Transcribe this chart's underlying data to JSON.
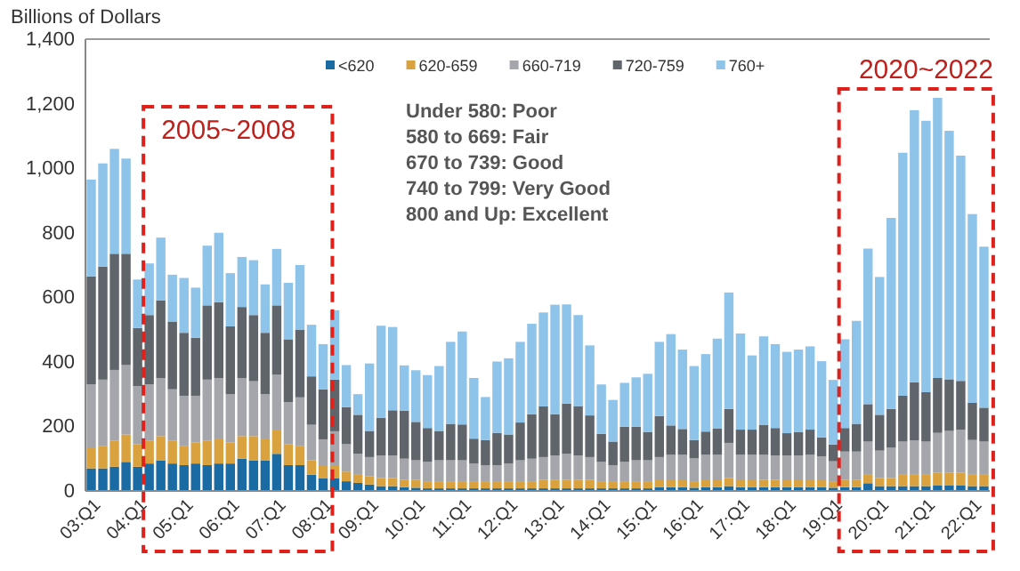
{
  "chart_data": {
    "type": "bar",
    "stacked": true,
    "ylabel": "Billions of Dollars",
    "categories": [
      "03:Q1",
      null,
      null,
      null,
      "04:Q1",
      null,
      null,
      null,
      "05:Q1",
      null,
      null,
      null,
      "06:Q1",
      null,
      null,
      null,
      "07:Q1",
      null,
      null,
      null,
      "08:Q1",
      null,
      null,
      null,
      "09:Q1",
      null,
      null,
      null,
      "10:Q1",
      null,
      null,
      null,
      "11:Q1",
      null,
      null,
      null,
      "12:Q1",
      null,
      null,
      null,
      "13:Q1",
      null,
      null,
      null,
      "14:Q1",
      null,
      null,
      null,
      "15:Q1",
      null,
      null,
      null,
      "16:Q1",
      null,
      null,
      null,
      "17:Q1",
      null,
      null,
      null,
      "18:Q1",
      null,
      null,
      null,
      "19:Q1",
      null,
      null,
      null,
      "20:Q1",
      null,
      null,
      null,
      "21:Q1",
      null,
      null,
      null,
      "22:Q1",
      null
    ],
    "series": [
      {
        "name": "<620",
        "color": "#1a6aa3",
        "values": [
          70,
          70,
          75,
          90,
          75,
          85,
          95,
          85,
          80,
          85,
          80,
          85,
          85,
          100,
          95,
          95,
          115,
          80,
          80,
          50,
          40,
          40,
          30,
          25,
          20,
          15,
          15,
          12,
          10,
          8,
          8,
          8,
          8,
          8,
          8,
          8,
          8,
          8,
          8,
          8,
          8,
          8,
          8,
          8,
          8,
          8,
          8,
          8,
          8,
          12,
          12,
          12,
          10,
          12,
          12,
          15,
          12,
          12,
          12,
          12,
          12,
          12,
          12,
          12,
          10,
          12,
          12,
          24,
          15,
          15,
          15,
          15,
          15,
          18,
          18,
          18,
          15,
          15
        ]
      },
      {
        "name": "620-659",
        "color": "#d9a23e",
        "values": [
          65,
          70,
          80,
          85,
          70,
          70,
          75,
          70,
          60,
          65,
          75,
          75,
          65,
          70,
          75,
          65,
          75,
          65,
          60,
          45,
          40,
          40,
          30,
          25,
          25,
          25,
          25,
          23,
          25,
          22,
          22,
          22,
          22,
          22,
          22,
          22,
          22,
          22,
          22,
          27,
          27,
          27,
          27,
          27,
          22,
          22,
          22,
          22,
          22,
          21,
          21,
          21,
          20,
          21,
          21,
          25,
          21,
          21,
          23,
          23,
          21,
          21,
          21,
          21,
          20,
          23,
          23,
          28,
          25,
          25,
          37,
          37,
          37,
          39,
          39,
          39,
          37,
          37
        ]
      },
      {
        "name": "660-719",
        "color": "#a5a6ab",
        "values": [
          195,
          205,
          220,
          215,
          180,
          175,
          180,
          160,
          155,
          145,
          190,
          190,
          150,
          180,
          170,
          140,
          170,
          130,
          150,
          110,
          80,
          105,
          85,
          65,
          60,
          70,
          70,
          65,
          60,
          60,
          65,
          65,
          65,
          55,
          50,
          50,
          55,
          65,
          70,
          70,
          75,
          80,
          75,
          70,
          60,
          50,
          60,
          65,
          65,
          72,
          79,
          79,
          71,
          79,
          79,
          109,
          79,
          79,
          77,
          75,
          77,
          77,
          79,
          74,
          62,
          87,
          87,
          101,
          85,
          94,
          101,
          105,
          101,
          123,
          129,
          133,
          106,
          101
        ]
      },
      {
        "name": "720-759",
        "color": "#60646b",
        "values": [
          335,
          350,
          360,
          345,
          180,
          215,
          240,
          210,
          195,
          180,
          230,
          235,
          210,
          220,
          205,
          190,
          215,
          195,
          210,
          150,
          155,
          160,
          115,
          121,
          81,
          117,
          140,
          149,
          119,
          105,
          91,
          113,
          111,
          77,
          78,
          100,
          90,
          117,
          138,
          157,
          128,
          156,
          153,
          129,
          87,
          73,
          109,
          104,
          87,
          127,
          91,
          80,
          57,
          72,
          81,
          105,
          78,
          78,
          92,
          85,
          69,
          72,
          78,
          59,
          52,
          73,
          86,
          116,
          111,
          120,
          142,
          180,
          153,
          170,
          160,
          151,
          115,
          105
        ]
      },
      {
        "name": "760+",
        "color": "#8ec3ea",
        "values": [
          300,
          320,
          325,
          295,
          150,
          160,
          195,
          145,
          170,
          155,
          185,
          215,
          165,
          155,
          170,
          150,
          175,
          175,
          200,
          160,
          140,
          215,
          130,
          64,
          209,
          285,
          258,
          140,
          160,
          164,
          201,
          254,
          288,
          188,
          133,
          221,
          236,
          250,
          280,
          291,
          339,
          307,
          282,
          217,
          153,
          129,
          136,
          153,
          181,
          230,
          283,
          246,
          229,
          240,
          279,
          361,
          298,
          230,
          275,
          260,
          252,
          256,
          258,
          236,
          200,
          275,
          319,
          482,
          427,
          592,
          753,
          843,
          841,
          868,
          770,
          698,
          585,
          499
        ]
      }
    ],
    "ylim": [
      0,
      1400
    ],
    "yticks": [
      0,
      200,
      400,
      600,
      800,
      {
        "value": 1000,
        "label": "1,000"
      },
      {
        "value": 1200,
        "label": "1,200"
      },
      {
        "value": 1400,
        "label": "1,400"
      }
    ],
    "grid": false,
    "legend": "top",
    "annotations": [
      "2005~2008",
      "2020~2022",
      "Under 580: Poor",
      "580 to 669: Fair",
      "670 to 739: Good",
      "740 to 799: Very Good",
      "800 and Up: Excellent"
    ]
  }
}
